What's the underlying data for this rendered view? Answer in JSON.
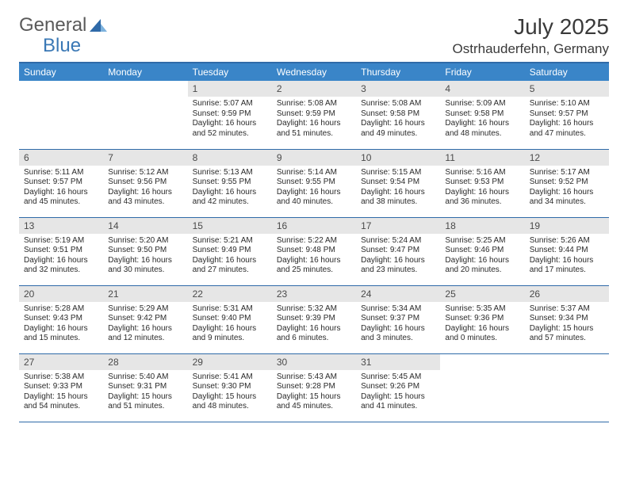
{
  "logo": {
    "word1": "General",
    "word2": "Blue"
  },
  "title": "July 2025",
  "location": "Ostrhauderfehn, Germany",
  "colors": {
    "header_bg": "#3a85c8",
    "header_text": "#ffffff",
    "rule": "#2f6aa8",
    "daynum_bg": "#e6e6e6",
    "text": "#2a2a2a"
  },
  "weekdays": [
    "Sunday",
    "Monday",
    "Tuesday",
    "Wednesday",
    "Thursday",
    "Friday",
    "Saturday"
  ],
  "weeks": [
    [
      {
        "n": "",
        "sr": "",
        "ss": "",
        "dl": ""
      },
      {
        "n": "",
        "sr": "",
        "ss": "",
        "dl": ""
      },
      {
        "n": "1",
        "sr": "Sunrise: 5:07 AM",
        "ss": "Sunset: 9:59 PM",
        "dl": "Daylight: 16 hours and 52 minutes."
      },
      {
        "n": "2",
        "sr": "Sunrise: 5:08 AM",
        "ss": "Sunset: 9:59 PM",
        "dl": "Daylight: 16 hours and 51 minutes."
      },
      {
        "n": "3",
        "sr": "Sunrise: 5:08 AM",
        "ss": "Sunset: 9:58 PM",
        "dl": "Daylight: 16 hours and 49 minutes."
      },
      {
        "n": "4",
        "sr": "Sunrise: 5:09 AM",
        "ss": "Sunset: 9:58 PM",
        "dl": "Daylight: 16 hours and 48 minutes."
      },
      {
        "n": "5",
        "sr": "Sunrise: 5:10 AM",
        "ss": "Sunset: 9:57 PM",
        "dl": "Daylight: 16 hours and 47 minutes."
      }
    ],
    [
      {
        "n": "6",
        "sr": "Sunrise: 5:11 AM",
        "ss": "Sunset: 9:57 PM",
        "dl": "Daylight: 16 hours and 45 minutes."
      },
      {
        "n": "7",
        "sr": "Sunrise: 5:12 AM",
        "ss": "Sunset: 9:56 PM",
        "dl": "Daylight: 16 hours and 43 minutes."
      },
      {
        "n": "8",
        "sr": "Sunrise: 5:13 AM",
        "ss": "Sunset: 9:55 PM",
        "dl": "Daylight: 16 hours and 42 minutes."
      },
      {
        "n": "9",
        "sr": "Sunrise: 5:14 AM",
        "ss": "Sunset: 9:55 PM",
        "dl": "Daylight: 16 hours and 40 minutes."
      },
      {
        "n": "10",
        "sr": "Sunrise: 5:15 AM",
        "ss": "Sunset: 9:54 PM",
        "dl": "Daylight: 16 hours and 38 minutes."
      },
      {
        "n": "11",
        "sr": "Sunrise: 5:16 AM",
        "ss": "Sunset: 9:53 PM",
        "dl": "Daylight: 16 hours and 36 minutes."
      },
      {
        "n": "12",
        "sr": "Sunrise: 5:17 AM",
        "ss": "Sunset: 9:52 PM",
        "dl": "Daylight: 16 hours and 34 minutes."
      }
    ],
    [
      {
        "n": "13",
        "sr": "Sunrise: 5:19 AM",
        "ss": "Sunset: 9:51 PM",
        "dl": "Daylight: 16 hours and 32 minutes."
      },
      {
        "n": "14",
        "sr": "Sunrise: 5:20 AM",
        "ss": "Sunset: 9:50 PM",
        "dl": "Daylight: 16 hours and 30 minutes."
      },
      {
        "n": "15",
        "sr": "Sunrise: 5:21 AM",
        "ss": "Sunset: 9:49 PM",
        "dl": "Daylight: 16 hours and 27 minutes."
      },
      {
        "n": "16",
        "sr": "Sunrise: 5:22 AM",
        "ss": "Sunset: 9:48 PM",
        "dl": "Daylight: 16 hours and 25 minutes."
      },
      {
        "n": "17",
        "sr": "Sunrise: 5:24 AM",
        "ss": "Sunset: 9:47 PM",
        "dl": "Daylight: 16 hours and 23 minutes."
      },
      {
        "n": "18",
        "sr": "Sunrise: 5:25 AM",
        "ss": "Sunset: 9:46 PM",
        "dl": "Daylight: 16 hours and 20 minutes."
      },
      {
        "n": "19",
        "sr": "Sunrise: 5:26 AM",
        "ss": "Sunset: 9:44 PM",
        "dl": "Daylight: 16 hours and 17 minutes."
      }
    ],
    [
      {
        "n": "20",
        "sr": "Sunrise: 5:28 AM",
        "ss": "Sunset: 9:43 PM",
        "dl": "Daylight: 16 hours and 15 minutes."
      },
      {
        "n": "21",
        "sr": "Sunrise: 5:29 AM",
        "ss": "Sunset: 9:42 PM",
        "dl": "Daylight: 16 hours and 12 minutes."
      },
      {
        "n": "22",
        "sr": "Sunrise: 5:31 AM",
        "ss": "Sunset: 9:40 PM",
        "dl": "Daylight: 16 hours and 9 minutes."
      },
      {
        "n": "23",
        "sr": "Sunrise: 5:32 AM",
        "ss": "Sunset: 9:39 PM",
        "dl": "Daylight: 16 hours and 6 minutes."
      },
      {
        "n": "24",
        "sr": "Sunrise: 5:34 AM",
        "ss": "Sunset: 9:37 PM",
        "dl": "Daylight: 16 hours and 3 minutes."
      },
      {
        "n": "25",
        "sr": "Sunrise: 5:35 AM",
        "ss": "Sunset: 9:36 PM",
        "dl": "Daylight: 16 hours and 0 minutes."
      },
      {
        "n": "26",
        "sr": "Sunrise: 5:37 AM",
        "ss": "Sunset: 9:34 PM",
        "dl": "Daylight: 15 hours and 57 minutes."
      }
    ],
    [
      {
        "n": "27",
        "sr": "Sunrise: 5:38 AM",
        "ss": "Sunset: 9:33 PM",
        "dl": "Daylight: 15 hours and 54 minutes."
      },
      {
        "n": "28",
        "sr": "Sunrise: 5:40 AM",
        "ss": "Sunset: 9:31 PM",
        "dl": "Daylight: 15 hours and 51 minutes."
      },
      {
        "n": "29",
        "sr": "Sunrise: 5:41 AM",
        "ss": "Sunset: 9:30 PM",
        "dl": "Daylight: 15 hours and 48 minutes."
      },
      {
        "n": "30",
        "sr": "Sunrise: 5:43 AM",
        "ss": "Sunset: 9:28 PM",
        "dl": "Daylight: 15 hours and 45 minutes."
      },
      {
        "n": "31",
        "sr": "Sunrise: 5:45 AM",
        "ss": "Sunset: 9:26 PM",
        "dl": "Daylight: 15 hours and 41 minutes."
      },
      {
        "n": "",
        "sr": "",
        "ss": "",
        "dl": ""
      },
      {
        "n": "",
        "sr": "",
        "ss": "",
        "dl": ""
      }
    ]
  ]
}
